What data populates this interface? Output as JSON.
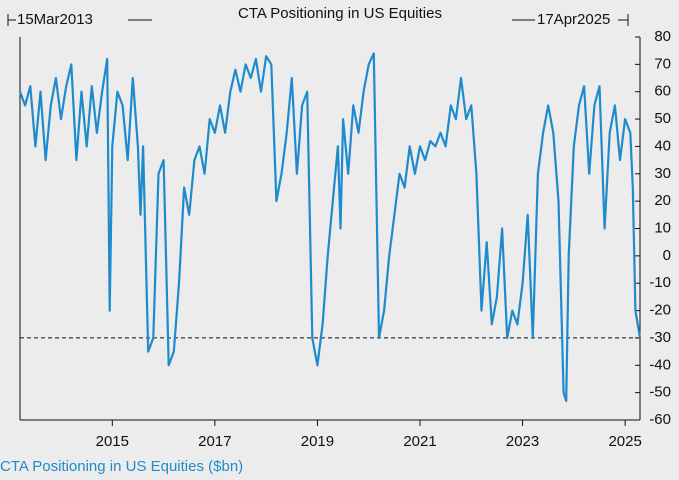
{
  "chart_data": {
    "type": "line",
    "title": "CTA Positioning in US Equities",
    "start_label": "15Mar2013",
    "end_label": "17Apr2025",
    "legend_label": "CTA Positioning in US Equities ($bn)",
    "x": [
      2013.2,
      2013.3,
      2013.4,
      2013.5,
      2013.6,
      2013.7,
      2013.8,
      2013.9,
      2014.0,
      2014.1,
      2014.2,
      2014.3,
      2014.4,
      2014.5,
      2014.6,
      2014.7,
      2014.8,
      2014.9,
      2014.95,
      2015.0,
      2015.1,
      2015.2,
      2015.3,
      2015.4,
      2015.5,
      2015.55,
      2015.6,
      2015.7,
      2015.8,
      2015.9,
      2016.0,
      2016.1,
      2016.2,
      2016.3,
      2016.4,
      2016.5,
      2016.6,
      2016.7,
      2016.8,
      2016.9,
      2017.0,
      2017.1,
      2017.2,
      2017.3,
      2017.4,
      2017.5,
      2017.6,
      2017.7,
      2017.8,
      2017.9,
      2018.0,
      2018.1,
      2018.2,
      2018.3,
      2018.4,
      2018.5,
      2018.6,
      2018.7,
      2018.8,
      2018.9,
      2019.0,
      2019.1,
      2019.2,
      2019.3,
      2019.4,
      2019.45,
      2019.5,
      2019.6,
      2019.7,
      2019.8,
      2019.9,
      2020.0,
      2020.1,
      2020.2,
      2020.3,
      2020.4,
      2020.5,
      2020.6,
      2020.7,
      2020.8,
      2020.9,
      2021.0,
      2021.1,
      2021.2,
      2021.3,
      2021.4,
      2021.5,
      2021.6,
      2021.7,
      2021.8,
      2021.9,
      2022.0,
      2022.1,
      2022.2,
      2022.3,
      2022.4,
      2022.5,
      2022.6,
      2022.7,
      2022.8,
      2022.9,
      2023.0,
      2023.1,
      2023.2,
      2023.3,
      2023.4,
      2023.5,
      2023.6,
      2023.7,
      2023.8,
      2023.85,
      2023.9,
      2024.0,
      2024.1,
      2024.2,
      2024.3,
      2024.4,
      2024.5,
      2024.6,
      2024.7,
      2024.8,
      2024.9,
      2025.0,
      2025.1,
      2025.15,
      2025.2,
      2025.29
    ],
    "series": [
      {
        "name": "CTA Positioning in US Equities ($bn)",
        "color": "#1f8bcc",
        "values": [
          60,
          55,
          62,
          40,
          60,
          35,
          55,
          65,
          50,
          62,
          70,
          35,
          60,
          40,
          62,
          45,
          60,
          72,
          -20,
          40,
          60,
          55,
          35,
          65,
          40,
          15,
          40,
          -35,
          -30,
          30,
          35,
          -40,
          -35,
          -10,
          25,
          15,
          35,
          40,
          30,
          50,
          45,
          55,
          45,
          60,
          68,
          60,
          70,
          65,
          72,
          60,
          73,
          70,
          20,
          30,
          45,
          65,
          30,
          55,
          60,
          -30,
          -40,
          -25,
          0,
          20,
          40,
          10,
          50,
          30,
          55,
          45,
          60,
          70,
          74,
          -30,
          -20,
          0,
          15,
          30,
          25,
          40,
          30,
          40,
          35,
          42,
          40,
          45,
          40,
          55,
          50,
          65,
          50,
          55,
          30,
          -20,
          5,
          -25,
          -15,
          10,
          -30,
          -20,
          -25,
          -10,
          15,
          -30,
          30,
          45,
          55,
          45,
          20,
          -50,
          -53,
          0,
          40,
          55,
          62,
          30,
          55,
          62,
          10,
          45,
          55,
          35,
          50,
          45,
          25,
          -20,
          -30
        ]
      }
    ],
    "xlim": [
      2013.2,
      2025.29
    ],
    "xticks": [
      2015,
      2017,
      2019,
      2021,
      2023,
      2025
    ],
    "ylim": [
      -60,
      80
    ],
    "yticks": [
      -60,
      -50,
      -40,
      -30,
      -20,
      -10,
      0,
      10,
      20,
      30,
      40,
      50,
      60,
      70,
      80
    ],
    "hline": -30
  }
}
